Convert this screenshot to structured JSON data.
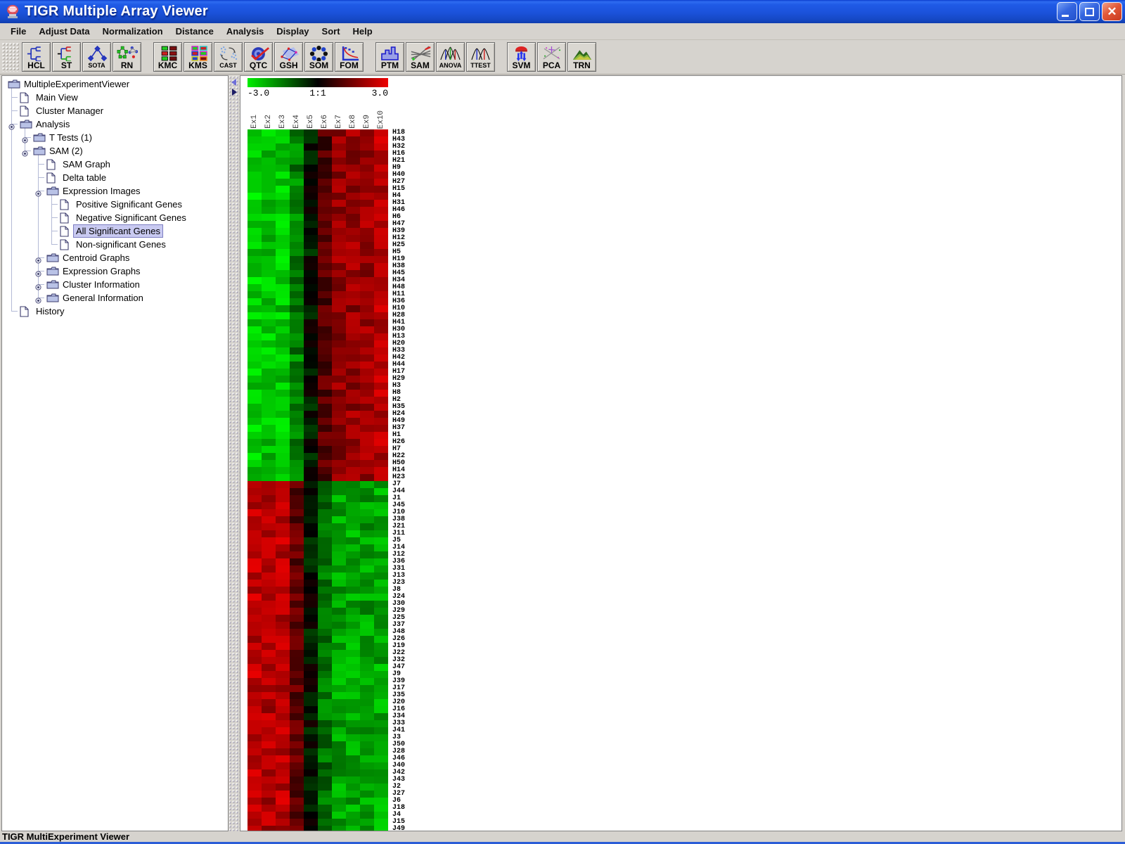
{
  "window": {
    "title": "TIGR Multiple Array Viewer",
    "status": "TIGR MultiExperiment Viewer"
  },
  "menu": {
    "items": [
      "File",
      "Adjust Data",
      "Normalization",
      "Distance",
      "Analysis",
      "Display",
      "Sort",
      "Help"
    ]
  },
  "toolbar": {
    "groups": [
      [
        "HCL",
        "ST",
        "SOTA",
        "RN"
      ],
      [
        "KMC",
        "KMS",
        "CAST",
        "QTC",
        "GSH",
        "SOM",
        "FOM"
      ],
      [
        "PTM",
        "SAM",
        "ANOVA",
        "TTEST"
      ],
      [
        "SVM",
        "PCA",
        "TRN"
      ]
    ]
  },
  "tree": {
    "items": [
      {
        "label": "MultipleExperimentViewer",
        "level": 0,
        "icon": "folder",
        "handle": false,
        "selected": false
      },
      {
        "label": "Main View",
        "level": 1,
        "icon": "doc",
        "handle": false,
        "selected": false
      },
      {
        "label": "Cluster Manager",
        "level": 1,
        "icon": "doc",
        "handle": false,
        "selected": false
      },
      {
        "label": "Analysis",
        "level": 1,
        "icon": "folder",
        "handle": true,
        "selected": false
      },
      {
        "label": "T Tests (1)",
        "level": 2,
        "icon": "folder",
        "handle": true,
        "selected": false
      },
      {
        "label": "SAM (2)",
        "level": 2,
        "icon": "folder",
        "handle": true,
        "selected": false
      },
      {
        "label": "SAM Graph",
        "level": 3,
        "icon": "doc",
        "handle": false,
        "selected": false
      },
      {
        "label": "Delta table",
        "level": 3,
        "icon": "doc",
        "handle": false,
        "selected": false
      },
      {
        "label": "Expression Images",
        "level": 3,
        "icon": "folder",
        "handle": true,
        "selected": false
      },
      {
        "label": "Positive Significant Genes",
        "level": 4,
        "icon": "doc",
        "handle": false,
        "selected": false
      },
      {
        "label": "Negative Significant Genes",
        "level": 4,
        "icon": "doc",
        "handle": false,
        "selected": false
      },
      {
        "label": "All Significant Genes",
        "level": 4,
        "icon": "doc",
        "handle": false,
        "selected": true
      },
      {
        "label": "Non-significant Genes",
        "level": 4,
        "icon": "doc",
        "handle": false,
        "selected": false
      },
      {
        "label": "Centroid Graphs",
        "level": 3,
        "icon": "folder",
        "handle": true,
        "selected": false
      },
      {
        "label": "Expression Graphs",
        "level": 3,
        "icon": "folder",
        "handle": true,
        "selected": false
      },
      {
        "label": "Cluster Information",
        "level": 3,
        "icon": "folder",
        "handle": true,
        "selected": false
      },
      {
        "label": "General Information",
        "level": 3,
        "icon": "folder",
        "handle": true,
        "selected": false
      },
      {
        "label": "History",
        "level": 1,
        "icon": "doc",
        "handle": false,
        "selected": false
      }
    ]
  },
  "chart_data": {
    "type": "heatmap",
    "title": "All Significant Genes expression image",
    "columns": [
      "Ex1",
      "Ex2",
      "Ex3",
      "Ex4",
      "Ex5",
      "Ex6",
      "Ex7",
      "Ex8",
      "Ex9",
      "Ex10"
    ],
    "scale": {
      "min_label": "-3.0",
      "mid_label": "1:1",
      "max_label": "3.0",
      "min": -3,
      "max": 3
    },
    "colormap": {
      "negative": "#00ee00",
      "zero": "#000000",
      "positive": "#ee0000"
    },
    "rows": [
      "H18",
      "H43",
      "H32",
      "H16",
      "H21",
      "H9",
      "H40",
      "H27",
      "H15",
      "H4",
      "H31",
      "H46",
      "H6",
      "H47",
      "H39",
      "H12",
      "H25",
      "H5",
      "H19",
      "H38",
      "H45",
      "H34",
      "H48",
      "H11",
      "H36",
      "H10",
      "H28",
      "H41",
      "H30",
      "H13",
      "H20",
      "H33",
      "H42",
      "H44",
      "H17",
      "H29",
      "H3",
      "H8",
      "H2",
      "H35",
      "H24",
      "H49",
      "H37",
      "H1",
      "H26",
      "H7",
      "H22",
      "H50",
      "H14",
      "H23",
      "J7",
      "J44",
      "J1",
      "J45",
      "J10",
      "J38",
      "J21",
      "J11",
      "J5",
      "J14",
      "J12",
      "J36",
      "J31",
      "J13",
      "J23",
      "J8",
      "J24",
      "J30",
      "J29",
      "J25",
      "J37",
      "J48",
      "J26",
      "J19",
      "J22",
      "J32",
      "J47",
      "J9",
      "J39",
      "J17",
      "J35",
      "J20",
      "J16",
      "J34",
      "J33",
      "J41",
      "J3",
      "J50",
      "J28",
      "J46",
      "J40",
      "J42",
      "J43",
      "J2",
      "J27",
      "J6",
      "J18",
      "J4",
      "J15",
      "J49"
    ],
    "block_profiles": {
      "H": [
        -2.45,
        -2.3,
        -2.35,
        -1.5,
        -0.25,
        0.95,
        1.7,
        1.75,
        1.8,
        2.1
      ],
      "J": [
        2.2,
        2.05,
        2.15,
        1.15,
        -0.2,
        -1.35,
        -1.9,
        -1.95,
        -1.85,
        -2.0
      ]
    },
    "jitter": 0.55
  }
}
